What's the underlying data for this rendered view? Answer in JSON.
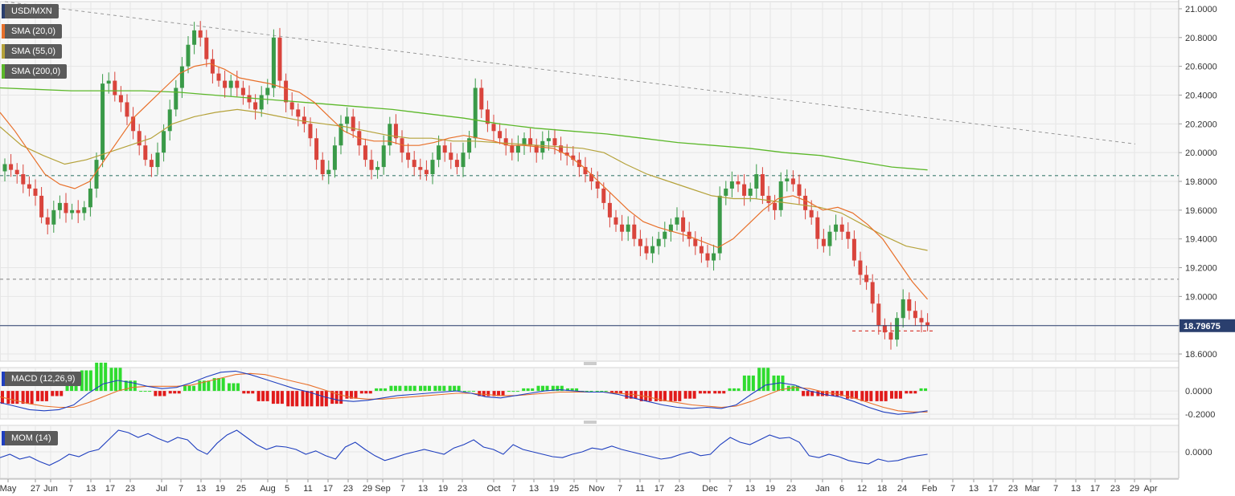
{
  "chart_data": [
    {
      "type": "line",
      "title": "USD/MXN",
      "instrument": "USD/MXN",
      "legend": [
        "SMA (20,0)",
        "SMA (55,0)",
        "SMA (200,0)"
      ],
      "legend_position": "top-left",
      "ylim": [
        18.55,
        21.05
      ],
      "yticks": [
        "21.0000",
        "20.8000",
        "20.6000",
        "20.4000",
        "20.2000",
        "20.0000",
        "19.8000",
        "19.6000",
        "19.4000",
        "19.2000",
        "19.0000",
        "18.8000",
        "18.6000"
      ],
      "current_price": "18.79675",
      "horizontal_levels": [
        19.84,
        19.12,
        18.76
      ],
      "trendline": {
        "from": [
          0,
          21.05
        ],
        "to": [
          185,
          20.06
        ]
      },
      "close": [
        19.92,
        19.88,
        19.85,
        19.78,
        19.75,
        19.7,
        19.55,
        19.5,
        19.6,
        19.65,
        19.58,
        19.6,
        19.58,
        19.62,
        19.75,
        19.95,
        20.48,
        20.5,
        20.4,
        20.35,
        20.25,
        20.15,
        20.05,
        19.95,
        19.9,
        20.0,
        20.15,
        20.3,
        20.45,
        20.6,
        20.75,
        20.85,
        20.8,
        20.65,
        20.55,
        20.5,
        20.45,
        20.5,
        20.45,
        20.4,
        20.35,
        20.3,
        20.4,
        20.45,
        20.8,
        20.5,
        20.35,
        20.3,
        20.25,
        20.2,
        20.1,
        19.95,
        19.85,
        19.88,
        20.05,
        20.2,
        20.25,
        20.15,
        20.05,
        19.95,
        19.88,
        19.9,
        20.05,
        20.2,
        20.1,
        20.0,
        19.95,
        19.9,
        19.88,
        19.85,
        19.95,
        20.05,
        20.0,
        19.95,
        19.9,
        20.0,
        20.1,
        20.45,
        20.3,
        20.2,
        20.15,
        20.1,
        20.05,
        20.0,
        20.05,
        20.1,
        20.05,
        20.0,
        20.08,
        20.1,
        20.05,
        20.0,
        19.98,
        19.95,
        19.9,
        19.85,
        19.8,
        19.75,
        19.65,
        19.55,
        19.5,
        19.45,
        19.5,
        19.4,
        19.35,
        19.3,
        19.35,
        19.4,
        19.45,
        19.5,
        19.55,
        19.45,
        19.4,
        19.35,
        19.3,
        19.25,
        19.3,
        19.7,
        19.75,
        19.8,
        19.78,
        19.7,
        19.75,
        19.85,
        19.7,
        19.65,
        19.6,
        19.8,
        19.82,
        19.78,
        19.7,
        19.6,
        19.55,
        19.4,
        19.35,
        19.45,
        19.5,
        19.45,
        19.4,
        19.25,
        19.15,
        19.1,
        18.95,
        18.8,
        18.75,
        18.7,
        18.85,
        18.98,
        18.9,
        18.85,
        18.82,
        18.8
      ],
      "sma_20": [
        20.28,
        20.15,
        20.0,
        19.85,
        19.78,
        19.75,
        19.8,
        19.95,
        20.1,
        20.25,
        20.35,
        20.45,
        20.55,
        20.6,
        20.62,
        20.58,
        20.52,
        20.5,
        20.48,
        20.45,
        20.42,
        20.35,
        20.25,
        20.15,
        20.1,
        20.08,
        20.08,
        20.05,
        20.05,
        20.07,
        20.1,
        20.12,
        20.1,
        20.08,
        20.05,
        20.05,
        20.04,
        20.03,
        19.98,
        19.9,
        19.8,
        19.7,
        19.6,
        19.52,
        19.48,
        19.45,
        19.42,
        19.38,
        19.34,
        19.4,
        19.5,
        19.6,
        19.68,
        19.7,
        19.66,
        19.6,
        19.62,
        19.58,
        19.5,
        19.4,
        19.25,
        19.1,
        18.98
      ],
      "sma_55": [
        20.18,
        20.05,
        19.98,
        19.92,
        19.95,
        20.0,
        20.05,
        20.1,
        20.2,
        20.25,
        20.28,
        20.3,
        20.28,
        20.25,
        20.22,
        20.2,
        20.18,
        20.15,
        20.12,
        20.1,
        20.1,
        20.08,
        20.08,
        20.07,
        20.06,
        20.05,
        20.04,
        20.03,
        20.0,
        19.92,
        19.85,
        19.8,
        19.75,
        19.7,
        19.68,
        19.68,
        19.66,
        19.64,
        19.62,
        19.58,
        19.5,
        19.42,
        19.35,
        19.32
      ],
      "sma_200": [
        20.45,
        20.44,
        20.43,
        20.43,
        20.43,
        20.42,
        20.4,
        20.38,
        20.36,
        20.34,
        20.32,
        20.3,
        20.27,
        20.24,
        20.2,
        20.17,
        20.15,
        20.13,
        20.1,
        20.07,
        20.05,
        20.03,
        20.0,
        19.98,
        19.94,
        19.9,
        19.88
      ],
      "x_tick_labels": [
        "May",
        "27",
        "Jun",
        "7",
        "13",
        "17",
        "23",
        "Jul",
        "7",
        "13",
        "19",
        "25",
        "Aug",
        "5",
        "11",
        "17",
        "23",
        "29",
        "Sep",
        "7",
        "13",
        "19",
        "23",
        "Oct",
        "7",
        "13",
        "19",
        "25",
        "Nov",
        "7",
        "11",
        "17",
        "23",
        "Dec",
        "7",
        "13",
        "19",
        "23",
        "Jan",
        "6",
        "12",
        "18",
        "24",
        "Feb",
        "7",
        "13",
        "17",
        "23",
        "Mar",
        "7",
        "13",
        "17",
        "23",
        "29",
        "Apr"
      ]
    },
    {
      "type": "line",
      "title": "MACD (12,26,9)",
      "ylim": [
        -0.24,
        0.2
      ],
      "yticks": [
        "0.0000",
        "-0.2000"
      ],
      "macd": [
        -0.1,
        -0.13,
        -0.16,
        -0.17,
        -0.16,
        -0.12,
        -0.02,
        0.06,
        0.09,
        0.07,
        0.04,
        0.02,
        0.03,
        0.07,
        0.12,
        0.16,
        0.17,
        0.14,
        0.1,
        0.06,
        0.02,
        -0.01,
        -0.05,
        -0.08,
        -0.09,
        -0.08,
        -0.06,
        -0.04,
        -0.03,
        -0.02,
        -0.01,
        0.0,
        -0.02,
        -0.05,
        -0.06,
        -0.04,
        -0.02,
        0.0,
        0.01,
        0.0,
        -0.01,
        -0.01,
        -0.03,
        -0.06,
        -0.09,
        -0.12,
        -0.14,
        -0.15,
        -0.14,
        -0.15,
        -0.12,
        -0.03,
        0.05,
        0.07,
        0.05,
        0.0,
        -0.03,
        -0.05,
        -0.09,
        -0.14,
        -0.18,
        -0.2,
        -0.19,
        -0.17
      ],
      "signal": [
        -0.05,
        -0.08,
        -0.11,
        -0.13,
        -0.14,
        -0.14,
        -0.1,
        -0.05,
        0.0,
        0.03,
        0.04,
        0.04,
        0.04,
        0.05,
        0.08,
        0.11,
        0.14,
        0.15,
        0.14,
        0.11,
        0.08,
        0.05,
        0.01,
        -0.03,
        -0.06,
        -0.07,
        -0.07,
        -0.06,
        -0.05,
        -0.04,
        -0.03,
        -0.02,
        -0.02,
        -0.03,
        -0.04,
        -0.04,
        -0.03,
        -0.02,
        -0.01,
        -0.01,
        -0.01,
        -0.01,
        -0.02,
        -0.03,
        -0.05,
        -0.08,
        -0.1,
        -0.12,
        -0.13,
        -0.14,
        -0.13,
        -0.09,
        -0.04,
        0.01,
        0.03,
        0.02,
        -0.01,
        -0.03,
        -0.06,
        -0.1,
        -0.14,
        -0.17,
        -0.18,
        -0.18
      ]
    },
    {
      "type": "line",
      "title": "MOM (14)",
      "ylim": [
        -0.55,
        0.55
      ],
      "yticks": [
        "0.0000"
      ],
      "values": [
        -0.12,
        -0.05,
        -0.15,
        -0.1,
        -0.2,
        -0.28,
        -0.18,
        -0.05,
        -0.1,
        0.0,
        0.05,
        0.25,
        0.45,
        0.4,
        0.3,
        0.38,
        0.28,
        0.2,
        0.3,
        0.25,
        0.05,
        -0.05,
        0.18,
        0.35,
        0.45,
        0.3,
        0.15,
        0.05,
        0.12,
        0.1,
        0.05,
        -0.05,
        0.02,
        -0.08,
        -0.15,
        0.1,
        0.2,
        0.05,
        -0.08,
        -0.18,
        -0.12,
        -0.05,
        0.0,
        0.05,
        0.0,
        -0.05,
        0.08,
        0.15,
        0.25,
        0.1,
        0.05,
        -0.05,
        0.15,
        0.05,
        0.0,
        -0.05,
        -0.1,
        -0.12,
        -0.05,
        0.0,
        0.08,
        0.05,
        0.12,
        0.05,
        0.0,
        -0.05,
        -0.1,
        -0.15,
        -0.12,
        -0.05,
        0.0,
        -0.08,
        -0.05,
        0.15,
        0.3,
        0.2,
        0.15,
        0.25,
        0.35,
        0.28,
        0.3,
        0.2,
        -0.08,
        -0.12,
        -0.05,
        -0.1,
        -0.18,
        -0.22,
        -0.25,
        -0.15,
        -0.2,
        -0.18,
        -0.12,
        -0.08,
        -0.05
      ]
    }
  ]
}
